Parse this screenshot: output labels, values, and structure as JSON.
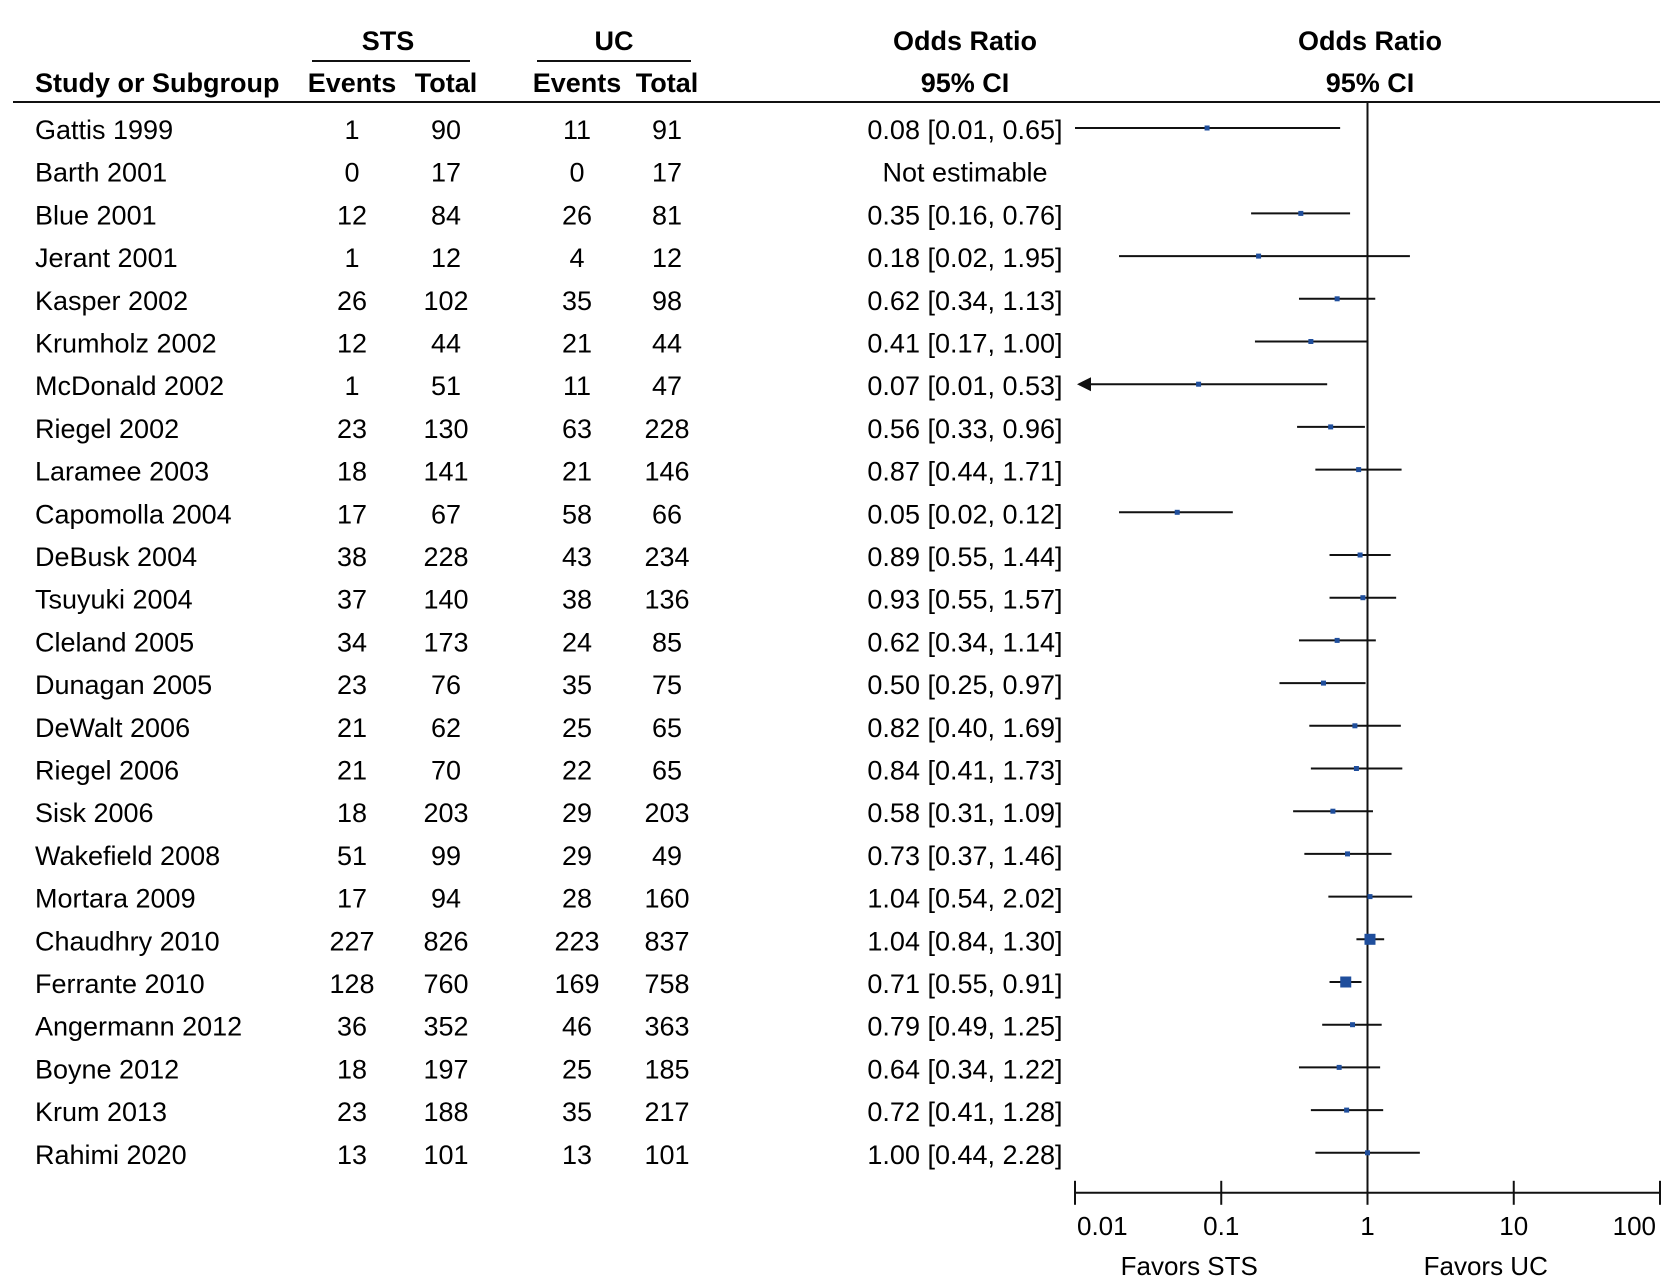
{
  "chart_data": {
    "type": "forest",
    "headers": {
      "study": "Study or Subgroup",
      "group1": "STS",
      "group2": "UC",
      "events": "Events",
      "total": "Total",
      "or_col_title": "Odds Ratio",
      "or_col_ci": "95% CI",
      "plot_title": "Odds Ratio",
      "plot_ci": "95% CI"
    },
    "studies": [
      {
        "name": "Gattis 1999",
        "e1": "1",
        "n1": "90",
        "e2": "11",
        "n2": "91",
        "ci_text": "0.08 [0.01, 0.65]",
        "or": 0.08,
        "lo": 0.01,
        "hi": 0.65
      },
      {
        "name": "Barth 2001",
        "e1": "0",
        "n1": "17",
        "e2": "0",
        "n2": "17",
        "ci_text": "Not estimable",
        "or": null,
        "lo": null,
        "hi": null
      },
      {
        "name": "Blue 2001",
        "e1": "12",
        "n1": "84",
        "e2": "26",
        "n2": "81",
        "ci_text": "0.35 [0.16, 0.76]",
        "or": 0.35,
        "lo": 0.16,
        "hi": 0.76
      },
      {
        "name": "Jerant 2001",
        "e1": "1",
        "n1": "12",
        "e2": "4",
        "n2": "12",
        "ci_text": "0.18 [0.02, 1.95]",
        "or": 0.18,
        "lo": 0.02,
        "hi": 1.95
      },
      {
        "name": "Kasper 2002",
        "e1": "26",
        "n1": "102",
        "e2": "35",
        "n2": "98",
        "ci_text": "0.62 [0.34, 1.13]",
        "or": 0.62,
        "lo": 0.34,
        "hi": 1.13
      },
      {
        "name": "Krumholz 2002",
        "e1": "12",
        "n1": "44",
        "e2": "21",
        "n2": "44",
        "ci_text": "0.41 [0.17, 1.00]",
        "or": 0.41,
        "lo": 0.17,
        "hi": 1.0
      },
      {
        "name": "McDonald 2002",
        "e1": "1",
        "n1": "51",
        "e2": "11",
        "n2": "47",
        "ci_text": "0.07 [0.01, 0.53]",
        "or": 0.07,
        "lo": 0.01,
        "hi": 0.53,
        "truncated_low": true
      },
      {
        "name": "Riegel 2002",
        "e1": "23",
        "n1": "130",
        "e2": "63",
        "n2": "228",
        "ci_text": "0.56 [0.33, 0.96]",
        "or": 0.56,
        "lo": 0.33,
        "hi": 0.96
      },
      {
        "name": "Laramee 2003",
        "e1": "18",
        "n1": "141",
        "e2": "21",
        "n2": "146",
        "ci_text": "0.87 [0.44, 1.71]",
        "or": 0.87,
        "lo": 0.44,
        "hi": 1.71
      },
      {
        "name": "Capomolla 2004",
        "e1": "17",
        "n1": "67",
        "e2": "58",
        "n2": "66",
        "ci_text": "0.05 [0.02, 0.12]",
        "or": 0.05,
        "lo": 0.02,
        "hi": 0.12
      },
      {
        "name": "DeBusk 2004",
        "e1": "38",
        "n1": "228",
        "e2": "43",
        "n2": "234",
        "ci_text": "0.89 [0.55, 1.44]",
        "or": 0.89,
        "lo": 0.55,
        "hi": 1.44
      },
      {
        "name": "Tsuyuki 2004",
        "e1": "37",
        "n1": "140",
        "e2": "38",
        "n2": "136",
        "ci_text": "0.93 [0.55, 1.57]",
        "or": 0.93,
        "lo": 0.55,
        "hi": 1.57
      },
      {
        "name": "Cleland 2005",
        "e1": "34",
        "n1": "173",
        "e2": "24",
        "n2": "85",
        "ci_text": "0.62 [0.34, 1.14]",
        "or": 0.62,
        "lo": 0.34,
        "hi": 1.14
      },
      {
        "name": "Dunagan 2005",
        "e1": "23",
        "n1": "76",
        "e2": "35",
        "n2": "75",
        "ci_text": "0.50 [0.25, 0.97]",
        "or": 0.5,
        "lo": 0.25,
        "hi": 0.97
      },
      {
        "name": "DeWalt 2006",
        "e1": "21",
        "n1": "62",
        "e2": "25",
        "n2": "65",
        "ci_text": "0.82 [0.40, 1.69]",
        "or": 0.82,
        "lo": 0.4,
        "hi": 1.69
      },
      {
        "name": "Riegel 2006",
        "e1": "21",
        "n1": "70",
        "e2": "22",
        "n2": "65",
        "ci_text": "0.84 [0.41, 1.73]",
        "or": 0.84,
        "lo": 0.41,
        "hi": 1.73
      },
      {
        "name": "Sisk 2006",
        "e1": "18",
        "n1": "203",
        "e2": "29",
        "n2": "203",
        "ci_text": "0.58 [0.31, 1.09]",
        "or": 0.58,
        "lo": 0.31,
        "hi": 1.09
      },
      {
        "name": "Wakefield 2008",
        "e1": "51",
        "n1": "99",
        "e2": "29",
        "n2": "49",
        "ci_text": "0.73 [0.37, 1.46]",
        "or": 0.73,
        "lo": 0.37,
        "hi": 1.46
      },
      {
        "name": "Mortara 2009",
        "e1": "17",
        "n1": "94",
        "e2": "28",
        "n2": "160",
        "ci_text": "1.04 [0.54, 2.02]",
        "or": 1.04,
        "lo": 0.54,
        "hi": 2.02
      },
      {
        "name": "Chaudhry 2010",
        "e1": "227",
        "n1": "826",
        "e2": "223",
        "n2": "837",
        "ci_text": "1.04 [0.84, 1.30]",
        "or": 1.04,
        "lo": 0.84,
        "hi": 1.3,
        "weight": "large"
      },
      {
        "name": "Ferrante 2010",
        "e1": "128",
        "n1": "760",
        "e2": "169",
        "n2": "758",
        "ci_text": "0.71 [0.55, 0.91]",
        "or": 0.71,
        "lo": 0.55,
        "hi": 0.91,
        "weight": "large"
      },
      {
        "name": "Angermann 2012",
        "e1": "36",
        "n1": "352",
        "e2": "46",
        "n2": "363",
        "ci_text": "0.79 [0.49, 1.25]",
        "or": 0.79,
        "lo": 0.49,
        "hi": 1.25
      },
      {
        "name": "Boyne 2012",
        "e1": "18",
        "n1": "197",
        "e2": "25",
        "n2": "185",
        "ci_text": "0.64 [0.34, 1.22]",
        "or": 0.64,
        "lo": 0.34,
        "hi": 1.22
      },
      {
        "name": "Krum 2013",
        "e1": "23",
        "n1": "188",
        "e2": "35",
        "n2": "217",
        "ci_text": "0.72 [0.41, 1.28]",
        "or": 0.72,
        "lo": 0.41,
        "hi": 1.28
      },
      {
        "name": "Rahimi 2020",
        "e1": "13",
        "n1": "101",
        "e2": "13",
        "n2": "101",
        "ci_text": "1.00 [0.44, 2.28]",
        "or": 1.0,
        "lo": 0.44,
        "hi": 2.28
      }
    ],
    "x_axis": {
      "scale": "log",
      "range": [
        0.01,
        100
      ],
      "ticks": [
        0.01,
        0.1,
        1,
        10,
        100
      ],
      "tick_labels": [
        "0.01",
        "0.1",
        "1",
        "10",
        "100"
      ],
      "favors_left": "Favors  STS",
      "favors_right": "Favors  UC"
    },
    "colors": {
      "marker": "#1f4e9c",
      "line": "#111111"
    }
  }
}
